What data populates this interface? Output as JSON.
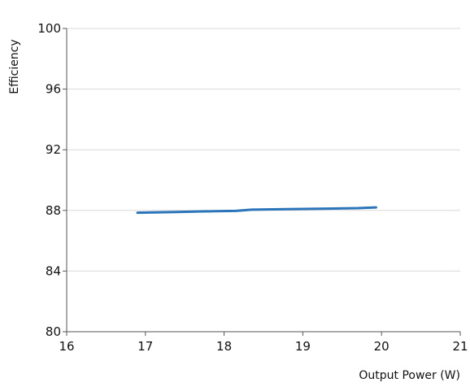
{
  "chart_data": {
    "type": "line",
    "title": "",
    "xlabel": "Output Power (W)",
    "ylabel": "Efficiency",
    "xlim": [
      16,
      21
    ],
    "ylim": [
      80,
      100
    ],
    "x_ticks": [
      16,
      17,
      18,
      19,
      20,
      21
    ],
    "y_ticks": [
      80,
      84,
      88,
      92,
      96,
      100
    ],
    "grid": "horizontal",
    "legend": "none",
    "series": [
      {
        "color": "#2a74b9",
        "x": [
          16.9,
          17.4,
          17.9,
          18.15,
          18.35,
          18.8,
          19.3,
          19.7,
          19.93
        ],
        "y": [
          87.85,
          87.9,
          87.95,
          87.97,
          88.05,
          88.08,
          88.12,
          88.15,
          88.2
        ]
      }
    ]
  }
}
